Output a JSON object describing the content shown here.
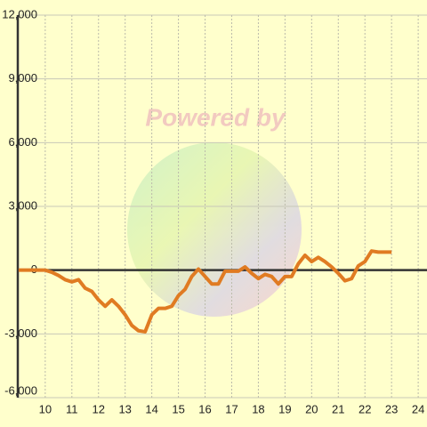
{
  "chart_data": {
    "type": "line",
    "annotations": [
      "Powered by"
    ],
    "x": [
      9,
      9.25,
      9.5,
      9.75,
      10,
      10.25,
      10.5,
      10.75,
      11,
      11.25,
      11.5,
      11.75,
      12,
      12.25,
      12.5,
      12.75,
      13,
      13.25,
      13.5,
      13.75,
      14,
      14.25,
      14.5,
      14.75,
      15,
      15.25,
      15.5,
      15.75,
      16,
      16.25,
      16.5,
      16.75,
      17,
      17.25,
      17.5,
      17.75,
      18,
      18.25,
      18.5,
      18.75,
      19,
      19.25,
      19.5,
      19.75,
      20,
      20.25,
      20.5,
      20.75,
      21,
      21.25,
      21.5,
      21.75,
      22,
      22.25,
      22.5,
      22.75,
      23
    ],
    "series": [
      {
        "color": "#e07b22",
        "values": [
          0,
          0,
          0,
          0,
          0,
          -100,
          -250,
          -450,
          -550,
          -450,
          -850,
          -1000,
          -1400,
          -1700,
          -1400,
          -1700,
          -2100,
          -2600,
          -2850,
          -2900,
          -2100,
          -1800,
          -1800,
          -1700,
          -1200,
          -900,
          -300,
          50,
          -300,
          -650,
          -650,
          -50,
          -50,
          -50,
          150,
          -150,
          -400,
          -200,
          -300,
          -650,
          -300,
          -300,
          300,
          700,
          400,
          600,
          400,
          150,
          -150,
          -500,
          -400,
          200,
          400,
          900,
          850,
          850,
          850
        ]
      }
    ],
    "xlim": [
      8.97,
      24.33
    ],
    "xticks": [
      10,
      11,
      12,
      13,
      14,
      15,
      16,
      17,
      18,
      19,
      20,
      21,
      22,
      23,
      24
    ],
    "ylim": [
      -6000,
      12000
    ],
    "yticks": [
      {
        "value": -6000,
        "label": "-6,000"
      },
      {
        "value": -3000,
        "label": "-3,000"
      },
      0,
      {
        "value": 3000,
        "label": "3,000"
      },
      {
        "value": 6000,
        "label": "6,000"
      },
      {
        "value": 9000,
        "label": "9,000"
      },
      {
        "value": 12000,
        "label": "12,000"
      }
    ],
    "grid": true
  }
}
